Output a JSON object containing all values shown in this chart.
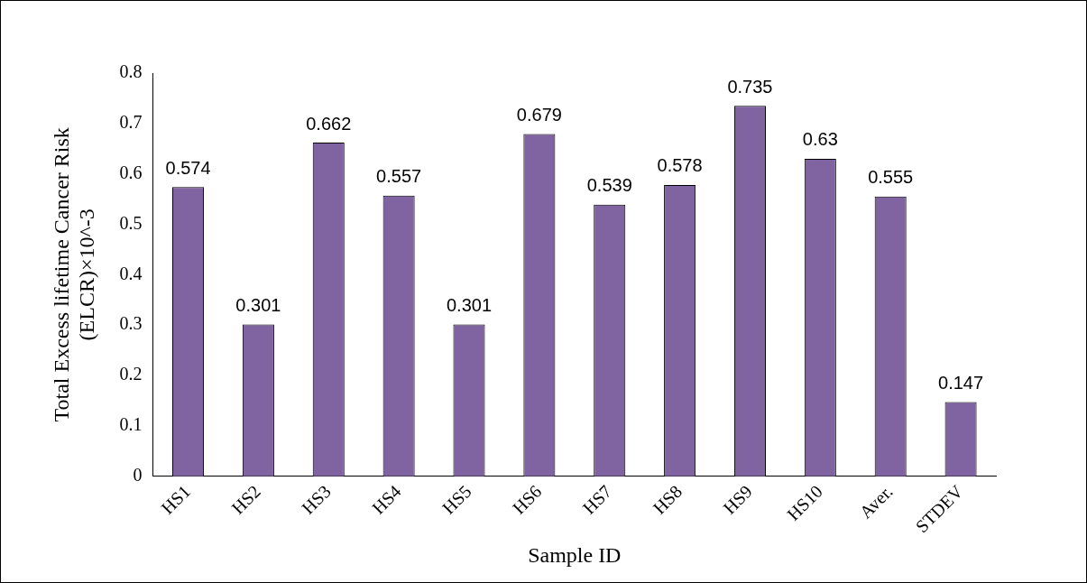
{
  "chart_data": {
    "type": "bar",
    "xlabel": "Sample ID",
    "ylabel": "Total Excess lifetime Cancer Risk\n(ELCR)×10^-3",
    "categories": [
      "HS1",
      "HS2",
      "HS3",
      "HS4",
      "HS5",
      "HS6",
      "HS7",
      "HS8",
      "HS9",
      "HS10",
      "Aver.",
      "STDEV"
    ],
    "values": [
      0.574,
      0.301,
      0.662,
      0.557,
      0.301,
      0.679,
      0.539,
      0.578,
      0.735,
      0.63,
      0.555,
      0.147
    ],
    "color": "#8064a2",
    "ylim": [
      0,
      0.8
    ],
    "yticks": [
      0,
      0.1,
      0.2,
      0.3,
      0.4,
      0.5,
      0.6,
      0.7,
      0.8
    ],
    "data_labels": true,
    "grid": false,
    "legend": false
  }
}
